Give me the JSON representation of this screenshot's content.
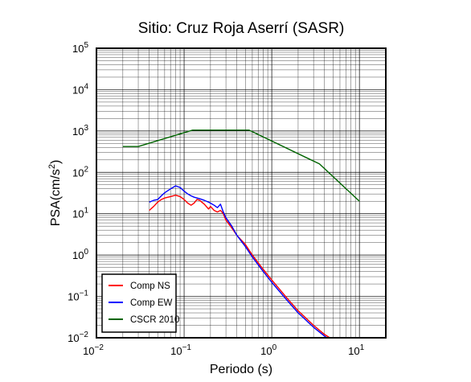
{
  "chart_data": {
    "type": "line",
    "title": "Sitio: Cruz Roja Aserrí (SASR)",
    "xlabel": "Periodo (s)",
    "ylabel": {
      "base": "PSA(cm/s",
      "sup": "2",
      "close": ")"
    },
    "xscale": "log",
    "yscale": "log",
    "xlim": [
      0.01,
      20
    ],
    "ylim": [
      0.01,
      100000
    ],
    "grid": true,
    "x_ticks": [
      {
        "base": "10",
        "exp": "−2"
      },
      {
        "base": "10",
        "exp": "−1"
      },
      {
        "base": "10",
        "exp": "0"
      },
      {
        "base": "10",
        "exp": "1"
      }
    ],
    "y_ticks": [
      {
        "base": "10",
        "exp": "−2"
      },
      {
        "base": "10",
        "exp": "−1"
      },
      {
        "base": "10",
        "exp": "0"
      },
      {
        "base": "10",
        "exp": "1"
      },
      {
        "base": "10",
        "exp": "2"
      },
      {
        "base": "10",
        "exp": "3"
      },
      {
        "base": "10",
        "exp": "4"
      },
      {
        "base": "10",
        "exp": "5"
      }
    ],
    "legend_position": "bottom-left",
    "series": [
      {
        "name": "Comp NS",
        "color": "#ff0000",
        "x": [
          0.04,
          0.045,
          0.05,
          0.055,
          0.06,
          0.07,
          0.08,
          0.09,
          0.1,
          0.11,
          0.12,
          0.13,
          0.14,
          0.15,
          0.17,
          0.19,
          0.2,
          0.22,
          0.24,
          0.26,
          0.28,
          0.3,
          0.35,
          0.4,
          0.5,
          0.6,
          0.8,
          1.0,
          1.5,
          2.0,
          3.0,
          4.0,
          5.0
        ],
        "y": [
          12,
          15,
          19,
          22,
          24,
          26,
          28,
          26,
          22,
          18,
          16,
          18,
          22,
          21,
          17,
          13,
          15,
          12,
          11,
          12,
          10,
          7,
          4.5,
          3,
          1.8,
          1.0,
          0.45,
          0.25,
          0.09,
          0.045,
          0.02,
          0.012,
          0.009
        ]
      },
      {
        "name": "Comp EW",
        "color": "#0000ff",
        "x": [
          0.04,
          0.045,
          0.05,
          0.055,
          0.06,
          0.07,
          0.08,
          0.09,
          0.1,
          0.11,
          0.12,
          0.13,
          0.15,
          0.17,
          0.19,
          0.2,
          0.22,
          0.24,
          0.26,
          0.28,
          0.3,
          0.35,
          0.4,
          0.5,
          0.6,
          0.8,
          1.0,
          1.5,
          2.0,
          3.0,
          4.0,
          5.0
        ],
        "y": [
          19,
          21,
          22,
          27,
          32,
          40,
          47,
          43,
          35,
          30,
          27,
          25,
          23,
          21,
          19,
          18,
          16,
          14,
          17,
          11,
          8,
          5,
          3,
          1.6,
          0.9,
          0.4,
          0.22,
          0.08,
          0.04,
          0.018,
          0.011,
          0.008
        ]
      },
      {
        "name": "CSCR 2010",
        "color": "#006400",
        "x": [
          0.02,
          0.03,
          0.125,
          0.55,
          3.5,
          10
        ],
        "y": [
          420,
          420,
          1050,
          1050,
          160,
          20
        ]
      }
    ]
  }
}
